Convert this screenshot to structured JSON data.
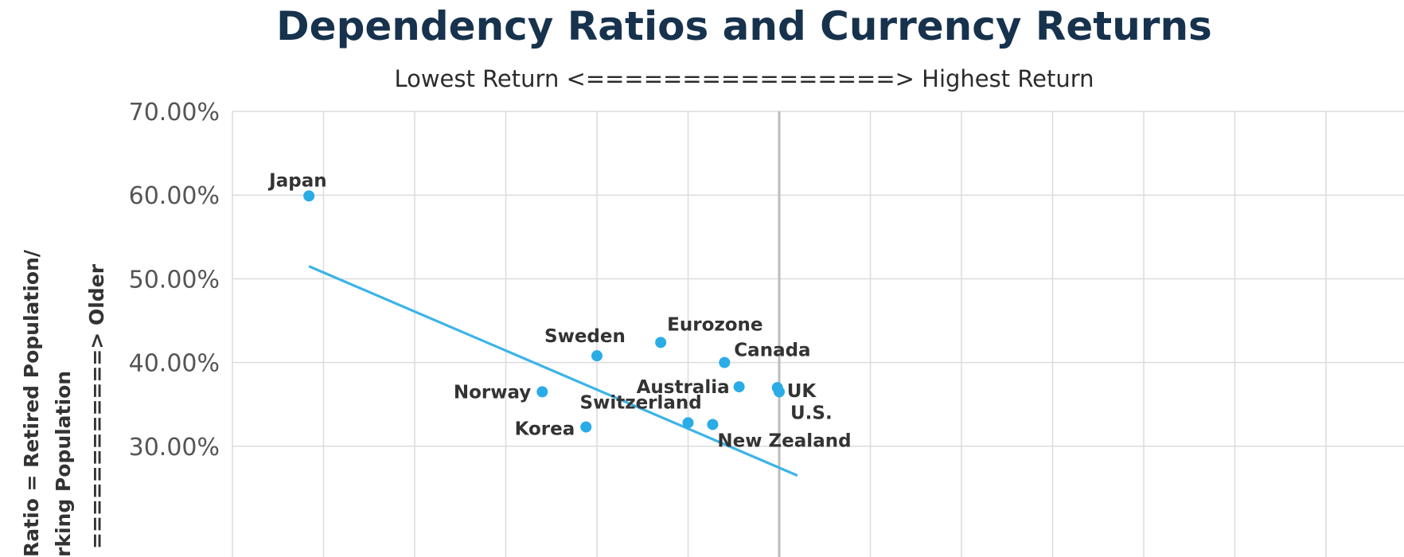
{
  "chart_data": {
    "type": "scatter",
    "title": "Dependency Ratios and Currency Returns",
    "subtitle": "Lowest Return <================> Highest Return",
    "ylabel_lines": [
      "Ratio = Retired Population/",
      "rking Population",
      "============> Older"
    ],
    "ylim": [
      0.3,
      0.7
    ],
    "yticks": [
      "70.00%",
      "60.00%",
      "50.00%",
      "40.00%",
      "30.00%"
    ],
    "x_gridlines": 11,
    "points": [
      {
        "name": "Japan",
        "x": 0.84,
        "y": 0.599
      },
      {
        "name": "Norway",
        "x": 3.4,
        "y": 0.365
      },
      {
        "name": "Korea",
        "x": 3.88,
        "y": 0.323
      },
      {
        "name": "Sweden",
        "x": 4.0,
        "y": 0.408
      },
      {
        "name": "Eurozone",
        "x": 4.7,
        "y": 0.424
      },
      {
        "name": "Switzerland",
        "x": 5.0,
        "y": 0.328
      },
      {
        "name": "New Zealand",
        "x": 5.27,
        "y": 0.326
      },
      {
        "name": "Canada",
        "x": 5.4,
        "y": 0.4
      },
      {
        "name": "Australia",
        "x": 5.56,
        "y": 0.371
      },
      {
        "name": "UK",
        "x": 5.98,
        "y": 0.37
      },
      {
        "name": "U.S.",
        "x": 6.0,
        "y": 0.365
      }
    ],
    "trendline": {
      "x": [
        0.84,
        6.2
      ],
      "y": [
        0.515,
        0.265
      ]
    },
    "highlight_vertical_gridline": 6,
    "grid": true,
    "colors": {
      "point": "#2aace6",
      "trend": "#3cb4e8",
      "grid": "#dcdcdc",
      "highlight": "#bdbdbd"
    }
  }
}
